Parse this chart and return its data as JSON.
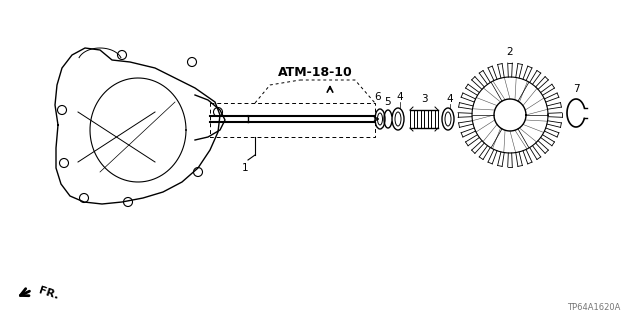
{
  "title": "ATM-18-10",
  "part_label": "TP64A1620A",
  "fr_label": "FR.",
  "bg_color": "#ffffff",
  "line_color": "#000000",
  "figsize": [
    6.4,
    3.2
  ],
  "dpi": 100
}
